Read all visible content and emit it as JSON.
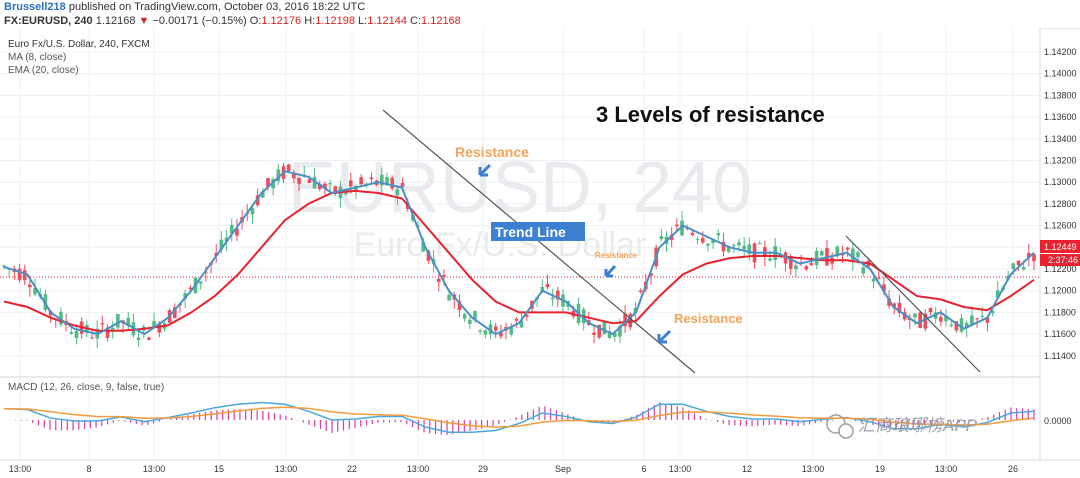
{
  "header": {
    "username": "Brussell218",
    "published_text": "published on TradingView.com, October 03, 2016 18:22 UTC",
    "symbol": "FX:EURUSD, 240",
    "last": "1.12168",
    "change": "−0.00171 (−0.15%)",
    "open_label": "O:",
    "open": "1.12176",
    "high_label": "H:",
    "high": "1.12198",
    "low_label": "L:",
    "low": "1.12144",
    "close_label": "C:",
    "close": "1.12168"
  },
  "legend": {
    "title": "Euro Fx/U.S. Dollar, 240, FXCM",
    "ma": "MA (8, close)",
    "ema": "EMA (20, close)",
    "macd": "MACD (12, 26, close, 9, false, true)"
  },
  "watermark": {
    "big": "EURUSD, 240",
    "small": "Euro Fx/U.S. Dollar"
  },
  "annotations": {
    "headline": "3 Levels of resistance",
    "resistance_1": "Resistance",
    "resistance_2": "Resistance",
    "resistance_3": "Resistance",
    "trend_line": "Trend Line"
  },
  "price_tags": {
    "current": "1.12449",
    "countdown": "2:37:46"
  },
  "brand": {
    "text": "汇商琅琊榜APP"
  },
  "colors": {
    "up_candle": "#53b987",
    "down_candle": "#eb4d5c",
    "ma": "#4a90c4",
    "ema": "#e8232f",
    "macd_line": "#49a8e0",
    "signal_line": "#f39a3c",
    "histogram": "#d23fa7",
    "annotation_orange": "#f3a35b",
    "annotation_blue": "#3d7fd1",
    "grid": "#eef0f3"
  },
  "chart_data": {
    "type": "line",
    "price_axis": {
      "ticks": [
        "1.14200",
        "1.14000",
        "1.13800",
        "1.13600",
        "1.13400",
        "1.13200",
        "1.13000",
        "1.12800",
        "1.12600",
        "1.12400",
        "1.12200",
        "1.12000",
        "1.11800",
        "1.11600",
        "1.11400"
      ]
    },
    "macd_axis": {
      "ticks": [
        "0.0000"
      ]
    },
    "time_axis": {
      "ticks": [
        "13:00",
        "8",
        "13:00",
        "15",
        "13:00",
        "22",
        "13:00",
        "29",
        "Sep",
        "6",
        "13:00",
        "12",
        "13:00",
        "19",
        "13:00",
        "26"
      ]
    },
    "series": [
      {
        "name": "MA (8, close)",
        "values": [
          1.1222,
          1.1215,
          1.118,
          1.1165,
          1.116,
          1.1172,
          1.116,
          1.1175,
          1.12,
          1.123,
          1.126,
          1.129,
          1.131,
          1.1305,
          1.129,
          1.1295,
          1.13,
          1.1295,
          1.124,
          1.12,
          1.1175,
          1.116,
          1.117,
          1.12,
          1.119,
          1.117,
          1.116,
          1.118,
          1.124,
          1.126,
          1.125,
          1.124,
          1.1235,
          1.1235,
          1.1225,
          1.123,
          1.1235,
          1.122,
          1.1185,
          1.117,
          1.118,
          1.1165,
          1.1175,
          1.1215,
          1.1235
        ]
      },
      {
        "name": "EMA (20, close)",
        "values": [
          1.119,
          1.1185,
          1.1175,
          1.1168,
          1.1163,
          1.1163,
          1.1165,
          1.1168,
          1.118,
          1.1195,
          1.1215,
          1.124,
          1.1265,
          1.128,
          1.129,
          1.1292,
          1.129,
          1.1285,
          1.126,
          1.1235,
          1.121,
          1.119,
          1.118,
          1.118,
          1.118,
          1.1175,
          1.117,
          1.1172,
          1.1195,
          1.1215,
          1.1225,
          1.123,
          1.1232,
          1.1232,
          1.123,
          1.1228,
          1.1228,
          1.1225,
          1.121,
          1.1195,
          1.1192,
          1.1185,
          1.1182,
          1.1195,
          1.121
        ]
      }
    ]
  }
}
